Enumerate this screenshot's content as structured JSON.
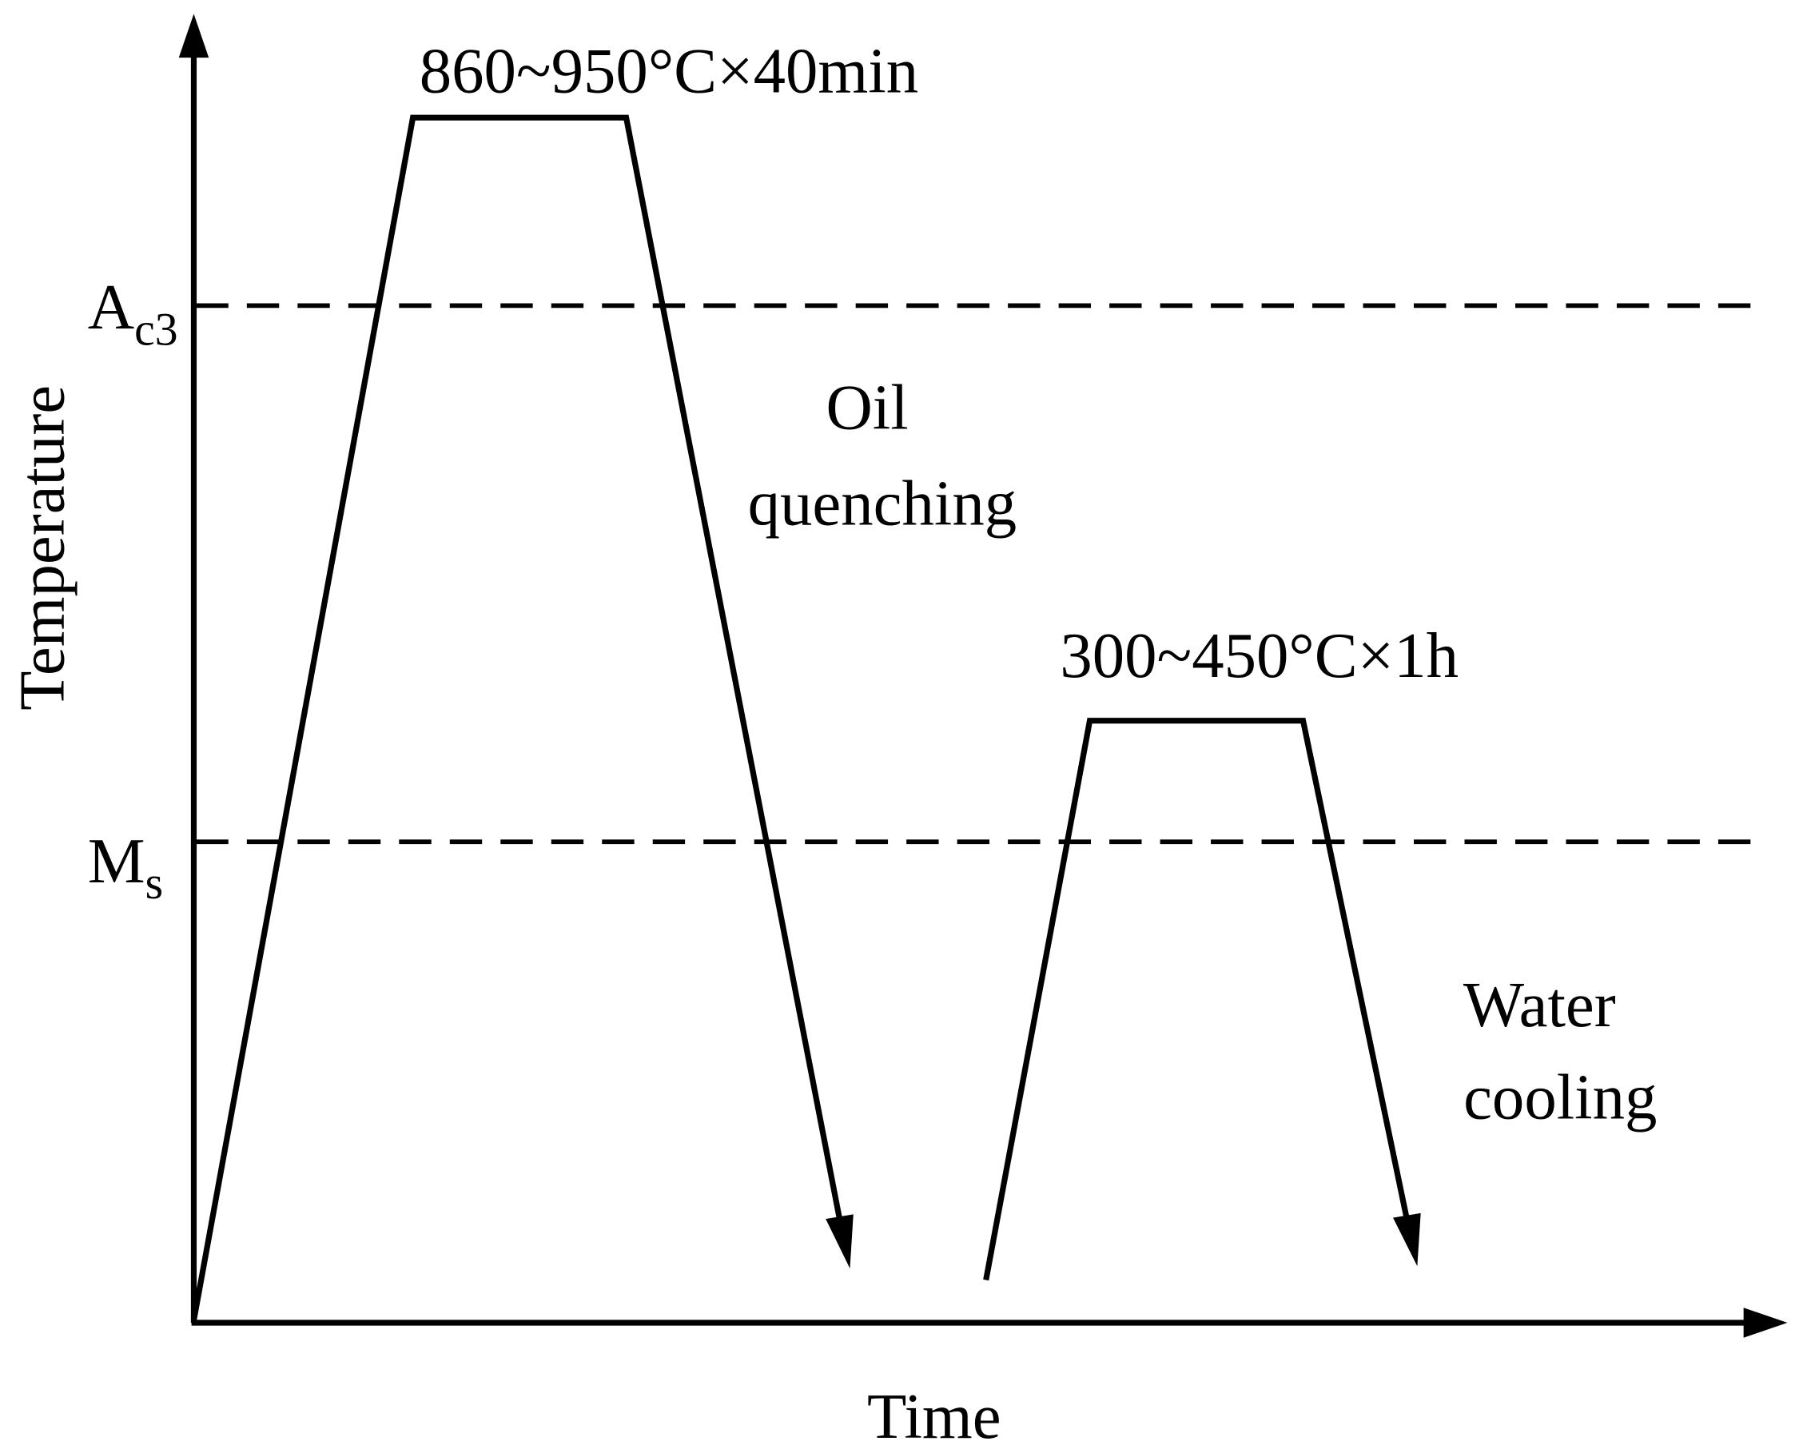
{
  "axes": {
    "y_label": "Temperature",
    "x_label": "Time"
  },
  "levels": [
    {
      "label": "A",
      "subscript": "c3"
    },
    {
      "label": "M",
      "subscript": "s"
    }
  ],
  "annotations": {
    "austenitizing": "860~950°C×40min",
    "tempering": "300~450°C×1h",
    "oil_quenching": [
      "Oil",
      "quenching"
    ],
    "water_cooling": [
      "Water",
      "cooling"
    ]
  }
}
